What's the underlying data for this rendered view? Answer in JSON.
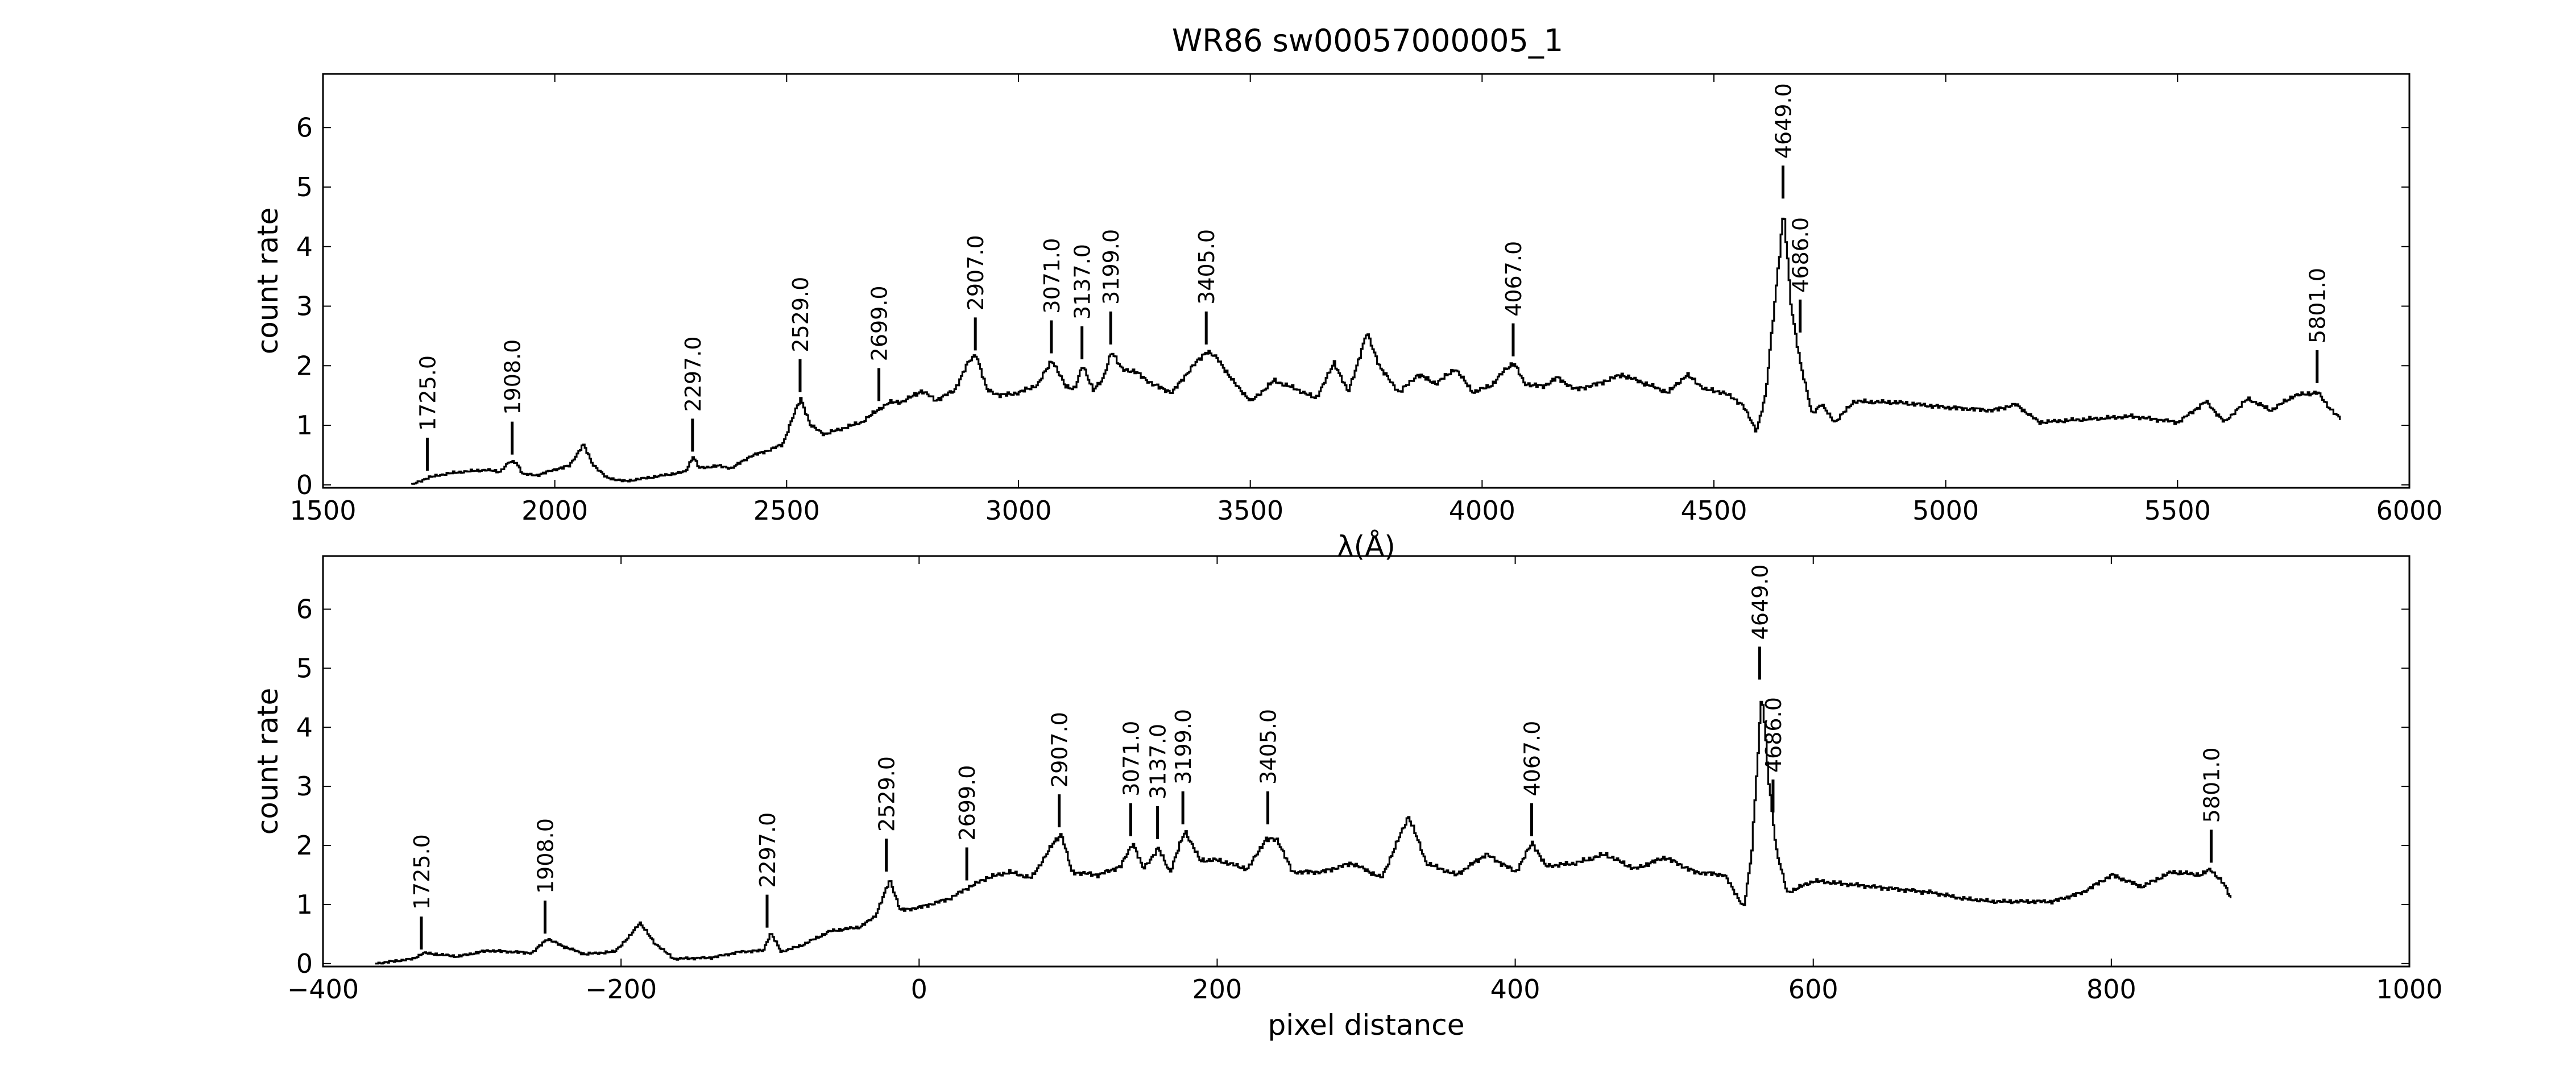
{
  "figure": {
    "title": "WR86  sw00057000005_1"
  },
  "colors": {
    "line": "#000000",
    "axes": "#000000",
    "background": "#ffffff"
  },
  "chart_data": [
    {
      "type": "line",
      "xlabel": "λ(Å)",
      "ylabel": "count rate",
      "xlim": [
        1500,
        6000
      ],
      "ylim": [
        -0.05,
        6.9
      ],
      "xticks": [
        "1500",
        "2000",
        "2500",
        "3000",
        "3500",
        "4000",
        "4500",
        "5000",
        "5500",
        "6000"
      ],
      "yticks": [
        "0",
        "1",
        "2",
        "3",
        "4",
        "5",
        "6"
      ],
      "x_range": [
        1690,
        5850
      ],
      "grid": false,
      "series": [
        {
          "anchors": [
            [
              1690,
              0.0
            ],
            [
              1725,
              0.12
            ],
            [
              1760,
              0.18
            ],
            [
              1800,
              0.22
            ],
            [
              1850,
              0.25
            ],
            [
              1880,
              0.22
            ],
            [
              1900,
              0.38
            ],
            [
              1915,
              0.38
            ],
            [
              1930,
              0.18
            ],
            [
              1960,
              0.16
            ],
            [
              2000,
              0.26
            ],
            [
              2030,
              0.32
            ],
            [
              2060,
              0.68
            ],
            [
              2080,
              0.35
            ],
            [
              2110,
              0.12
            ],
            [
              2150,
              0.06
            ],
            [
              2200,
              0.12
            ],
            [
              2250,
              0.18
            ],
            [
              2280,
              0.22
            ],
            [
              2297,
              0.48
            ],
            [
              2310,
              0.28
            ],
            [
              2350,
              0.32
            ],
            [
              2380,
              0.28
            ],
            [
              2420,
              0.48
            ],
            [
              2460,
              0.58
            ],
            [
              2490,
              0.68
            ],
            [
              2510,
              1.1
            ],
            [
              2529,
              1.45
            ],
            [
              2550,
              1.0
            ],
            [
              2580,
              0.85
            ],
            [
              2620,
              0.95
            ],
            [
              2660,
              1.05
            ],
            [
              2699,
              1.28
            ],
            [
              2720,
              1.38
            ],
            [
              2750,
              1.4
            ],
            [
              2790,
              1.58
            ],
            [
              2820,
              1.42
            ],
            [
              2860,
              1.58
            ],
            [
              2890,
              2.05
            ],
            [
              2907,
              2.2
            ],
            [
              2930,
              1.6
            ],
            [
              2960,
              1.5
            ],
            [
              3000,
              1.55
            ],
            [
              3040,
              1.68
            ],
            [
              3071,
              2.1
            ],
            [
              3100,
              1.65
            ],
            [
              3120,
              1.62
            ],
            [
              3137,
              2.0
            ],
            [
              3160,
              1.6
            ],
            [
              3180,
              1.75
            ],
            [
              3199,
              2.25
            ],
            [
              3220,
              1.95
            ],
            [
              3250,
              1.9
            ],
            [
              3290,
              1.68
            ],
            [
              3330,
              1.55
            ],
            [
              3370,
              1.95
            ],
            [
              3405,
              2.25
            ],
            [
              3430,
              2.1
            ],
            [
              3460,
              1.75
            ],
            [
              3500,
              1.4
            ],
            [
              3550,
              1.75
            ],
            [
              3600,
              1.6
            ],
            [
              3640,
              1.45
            ],
            [
              3680,
              2.05
            ],
            [
              3710,
              1.55
            ],
            [
              3750,
              2.55
            ],
            [
              3780,
              1.95
            ],
            [
              3820,
              1.55
            ],
            [
              3860,
              1.85
            ],
            [
              3900,
              1.7
            ],
            [
              3940,
              1.95
            ],
            [
              3980,
              1.55
            ],
            [
              4020,
              1.68
            ],
            [
              4050,
              1.95
            ],
            [
              4067,
              2.05
            ],
            [
              4090,
              1.7
            ],
            [
              4130,
              1.65
            ],
            [
              4160,
              1.8
            ],
            [
              4200,
              1.6
            ],
            [
              4250,
              1.7
            ],
            [
              4300,
              1.85
            ],
            [
              4350,
              1.7
            ],
            [
              4400,
              1.55
            ],
            [
              4440,
              1.85
            ],
            [
              4480,
              1.6
            ],
            [
              4520,
              1.55
            ],
            [
              4560,
              1.35
            ],
            [
              4590,
              0.9
            ],
            [
              4610,
              1.5
            ],
            [
              4630,
              3.1
            ],
            [
              4649,
              4.6
            ],
            [
              4665,
              3.0
            ],
            [
              4686,
              2.0
            ],
            [
              4710,
              1.2
            ],
            [
              4730,
              1.35
            ],
            [
              4760,
              1.05
            ],
            [
              4800,
              1.4
            ],
            [
              4900,
              1.38
            ],
            [
              5000,
              1.3
            ],
            [
              5100,
              1.25
            ],
            [
              5150,
              1.35
            ],
            [
              5200,
              1.05
            ],
            [
              5300,
              1.1
            ],
            [
              5400,
              1.15
            ],
            [
              5500,
              1.05
            ],
            [
              5560,
              1.4
            ],
            [
              5600,
              1.05
            ],
            [
              5650,
              1.45
            ],
            [
              5700,
              1.25
            ],
            [
              5750,
              1.5
            ],
            [
              5801,
              1.55
            ],
            [
              5820,
              1.35
            ],
            [
              5850,
              1.1
            ]
          ]
        }
      ],
      "line_labels": [
        {
          "text": "1725.0",
          "x": 1725,
          "y": 0.18
        },
        {
          "text": "1908.0",
          "x": 1908,
          "y": 0.45
        },
        {
          "text": "2297.0",
          "x": 2297,
          "y": 0.5
        },
        {
          "text": "2529.0",
          "x": 2529,
          "y": 1.5
        },
        {
          "text": "2699.0",
          "x": 2699,
          "y": 1.35
        },
        {
          "text": "2907.0",
          "x": 2907,
          "y": 2.2
        },
        {
          "text": "3071.0",
          "x": 3071,
          "y": 2.15
        },
        {
          "text": "3137.0",
          "x": 3137,
          "y": 2.05
        },
        {
          "text": "3199.0",
          "x": 3199,
          "y": 2.3
        },
        {
          "text": "3405.0",
          "x": 3405,
          "y": 2.3
        },
        {
          "text": "4067.0",
          "x": 4067,
          "y": 2.1
        },
        {
          "text": "4649.0",
          "x": 4649,
          "y": 4.75
        },
        {
          "text": "4686.0",
          "x": 4686,
          "y": 2.5
        },
        {
          "text": "5801.0",
          "x": 5801,
          "y": 1.65
        }
      ]
    },
    {
      "type": "line",
      "xlabel": "pixel distance",
      "ylabel": "count rate",
      "xlim": [
        -400,
        1000
      ],
      "ylim": [
        -0.05,
        6.9
      ],
      "xticks": [
        "−400",
        "−200",
        "0",
        "200",
        "400",
        "600",
        "800",
        "1000"
      ],
      "yticks": [
        "0",
        "1",
        "2",
        "3",
        "4",
        "5",
        "6"
      ],
      "x_range": [
        -365,
        880
      ],
      "grid": false,
      "series": [
        {
          "anchors": [
            [
              -365,
              0.0
            ],
            [
              -340,
              0.08
            ],
            [
              -333,
              0.18
            ],
            [
              -310,
              0.12
            ],
            [
              -290,
              0.22
            ],
            [
              -260,
              0.18
            ],
            [
              -250,
              0.42
            ],
            [
              -240,
              0.3
            ],
            [
              -225,
              0.16
            ],
            [
              -205,
              0.2
            ],
            [
              -195,
              0.45
            ],
            [
              -188,
              0.7
            ],
            [
              -178,
              0.35
            ],
            [
              -165,
              0.08
            ],
            [
              -140,
              0.1
            ],
            [
              -120,
              0.2
            ],
            [
              -105,
              0.22
            ],
            [
              -100,
              0.52
            ],
            [
              -93,
              0.2
            ],
            [
              -80,
              0.3
            ],
            [
              -60,
              0.55
            ],
            [
              -40,
              0.62
            ],
            [
              -30,
              0.8
            ],
            [
              -25,
              1.1
            ],
            [
              -20,
              1.42
            ],
            [
              -13,
              0.9
            ],
            [
              0,
              0.95
            ],
            [
              20,
              1.1
            ],
            [
              32,
              1.28
            ],
            [
              45,
              1.45
            ],
            [
              60,
              1.55
            ],
            [
              75,
              1.45
            ],
            [
              90,
              2.05
            ],
            [
              95,
              2.2
            ],
            [
              102,
              1.55
            ],
            [
              120,
              1.5
            ],
            [
              135,
              1.65
            ],
            [
              143,
              2.05
            ],
            [
              150,
              1.6
            ],
            [
              160,
              1.95
            ],
            [
              168,
              1.55
            ],
            [
              178,
              2.25
            ],
            [
              188,
              1.75
            ],
            [
              200,
              1.75
            ],
            [
              220,
              1.6
            ],
            [
              232,
              2.1
            ],
            [
              240,
              2.1
            ],
            [
              250,
              1.55
            ],
            [
              270,
              1.55
            ],
            [
              290,
              1.7
            ],
            [
              310,
              1.45
            ],
            [
              328,
              2.5
            ],
            [
              340,
              1.7
            ],
            [
              360,
              1.5
            ],
            [
              380,
              1.85
            ],
            [
              400,
              1.55
            ],
            [
              411,
              2.05
            ],
            [
              420,
              1.65
            ],
            [
              440,
              1.7
            ],
            [
              460,
              1.85
            ],
            [
              480,
              1.6
            ],
            [
              500,
              1.8
            ],
            [
              520,
              1.55
            ],
            [
              540,
              1.5
            ],
            [
              553,
              0.95
            ],
            [
              558,
              1.8
            ],
            [
              565,
              4.6
            ],
            [
              570,
              3.0
            ],
            [
              575,
              1.9
            ],
            [
              582,
              1.2
            ],
            [
              600,
              1.4
            ],
            [
              640,
              1.3
            ],
            [
              680,
              1.2
            ],
            [
              700,
              1.1
            ],
            [
              720,
              1.05
            ],
            [
              760,
              1.05
            ],
            [
              780,
              1.2
            ],
            [
              800,
              1.5
            ],
            [
              820,
              1.3
            ],
            [
              840,
              1.55
            ],
            [
              860,
              1.5
            ],
            [
              866,
              1.6
            ],
            [
              875,
              1.35
            ],
            [
              880,
              1.1
            ]
          ]
        }
      ],
      "line_labels": [
        {
          "text": "1725.0",
          "x": -334,
          "y": 0.18
        },
        {
          "text": "1908.0",
          "x": -251,
          "y": 0.45
        },
        {
          "text": "2297.0",
          "x": -102,
          "y": 0.55
        },
        {
          "text": "2529.0",
          "x": -22,
          "y": 1.5
        },
        {
          "text": "2699.0",
          "x": 32,
          "y": 1.35
        },
        {
          "text": "2907.0",
          "x": 94,
          "y": 2.25
        },
        {
          "text": "3071.0",
          "x": 142,
          "y": 2.1
        },
        {
          "text": "3137.0",
          "x": 160,
          "y": 2.05
        },
        {
          "text": "3199.0",
          "x": 177,
          "y": 2.3
        },
        {
          "text": "3405.0",
          "x": 234,
          "y": 2.3
        },
        {
          "text": "4067.0",
          "x": 411,
          "y": 2.1
        },
        {
          "text": "4649.0",
          "x": 564,
          "y": 4.75
        },
        {
          "text": "4686.0",
          "x": 573,
          "y": 2.5
        },
        {
          "text": "5801.0",
          "x": 867,
          "y": 1.65
        }
      ]
    }
  ]
}
